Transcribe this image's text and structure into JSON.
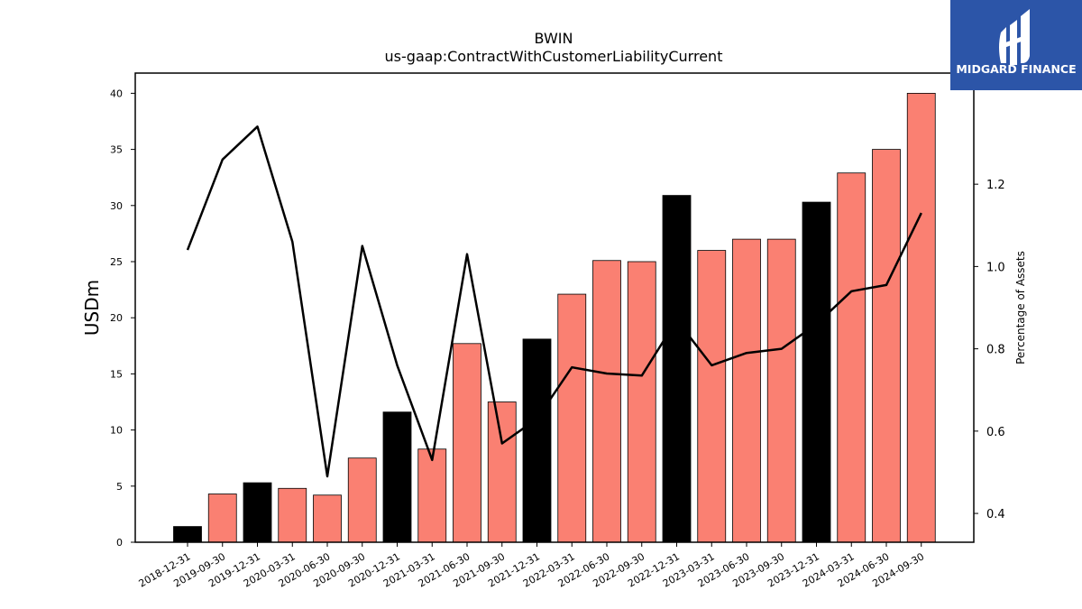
{
  "chart_data": {
    "type": "bar",
    "title": "BWIN",
    "subtitle": "us-gaap:ContractWithCustomerLiabilityCurrent",
    "ylabel": "USDm",
    "y2label": "Percentage of Assets",
    "categories": [
      "2018-12-31",
      "2019-09-30",
      "2019-12-31",
      "2020-03-31",
      "2020-06-30",
      "2020-09-30",
      "2020-12-31",
      "2021-03-31",
      "2021-06-30",
      "2021-09-30",
      "2021-12-31",
      "2022-03-31",
      "2022-06-30",
      "2022-09-30",
      "2022-12-31",
      "2023-03-31",
      "2023-06-30",
      "2023-09-30",
      "2023-12-31",
      "2024-03-31",
      "2024-06-30",
      "2024-09-30"
    ],
    "series": [
      {
        "kind": "bar",
        "axis": "left",
        "values": [
          1.4,
          4.3,
          5.3,
          4.8,
          4.2,
          7.5,
          11.6,
          8.3,
          17.7,
          12.5,
          18.1,
          22.1,
          25.1,
          25.0,
          30.9,
          26.0,
          27.0,
          27.0,
          30.3,
          32.9,
          35.0,
          40.0
        ],
        "colors": [
          "#000000",
          "#fa8072",
          "#000000",
          "#fa8072",
          "#fa8072",
          "#fa8072",
          "#000000",
          "#fa8072",
          "#fa8072",
          "#fa8072",
          "#000000",
          "#fa8072",
          "#fa8072",
          "#fa8072",
          "#000000",
          "#fa8072",
          "#fa8072",
          "#fa8072",
          "#000000",
          "#fa8072",
          "#fa8072",
          "#fa8072"
        ]
      },
      {
        "kind": "line",
        "axis": "right",
        "color": "#000000",
        "values": [
          1.04,
          1.26,
          1.34,
          1.06,
          0.49,
          1.05,
          0.76,
          0.53,
          1.03,
          0.57,
          0.63,
          0.755,
          0.74,
          0.735,
          0.87,
          0.76,
          0.79,
          0.8,
          0.86,
          0.94,
          0.955,
          1.13
        ]
      }
    ],
    "ylim": [
      0,
      41.8
    ],
    "yticks": [
      0,
      5,
      10,
      15,
      20,
      25,
      30,
      35,
      40
    ],
    "y2lim": [
      0.33,
      1.47
    ],
    "y2ticks": [
      0.4,
      0.6,
      0.8,
      1.0,
      1.2
    ],
    "grid": false
  },
  "logo": {
    "text": "MIDGARD FINANCE",
    "background": "#2c55a8"
  }
}
